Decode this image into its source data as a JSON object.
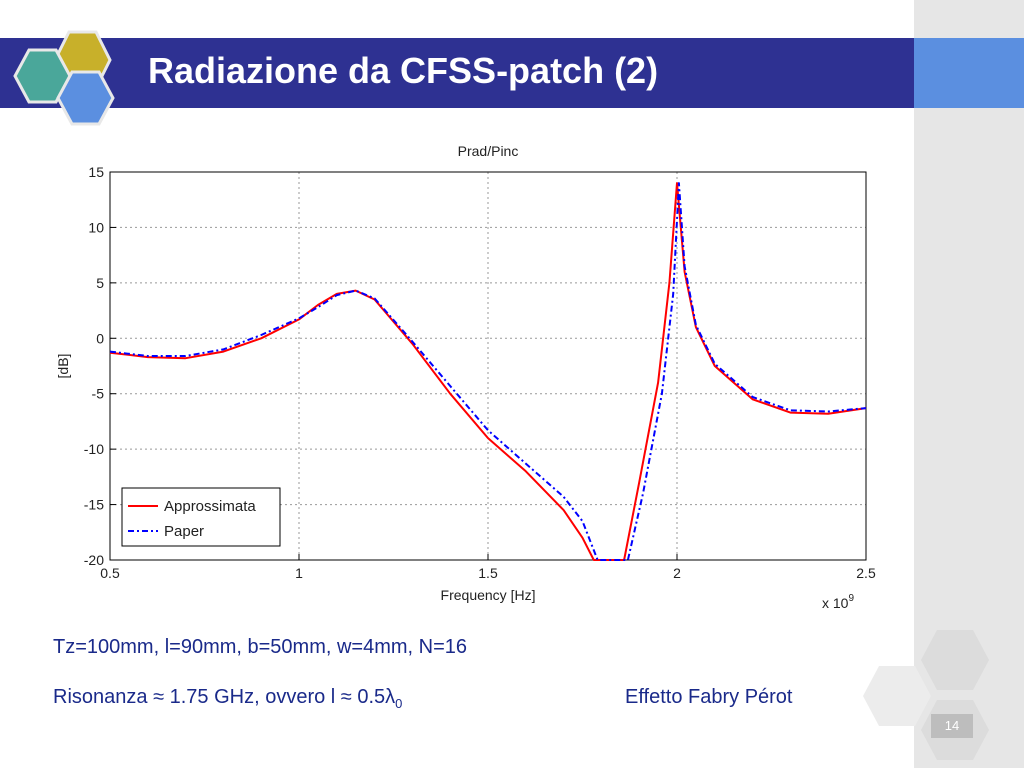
{
  "slide": {
    "title": "Radiazione da CFSS-patch (2)",
    "params_line": "Tz=100mm,  l=90mm,  b=50mm,  w=4mm,  N=16",
    "resonance_prefix": "Risonanza  ",
    "approx_symbol": "≈",
    "resonance_value": " 1.75 GHz,  ovvero l ",
    "approx_symbol_2": "≈",
    "lambda_text": " 0.5λ",
    "lambda_sub": "0",
    "fabry_perot": "Effetto Fabry Pérot",
    "page_number": "14"
  },
  "colors": {
    "title_bar": "#2e3192",
    "accent": "#5b8fe0",
    "text": "#1a2a8a",
    "series_red": "#ff0000",
    "series_blue": "#0000ff"
  },
  "chart_data": {
    "type": "line",
    "title": "Prad/Pinc",
    "xlabel": "Frequency [Hz]",
    "ylabel": "[dB]",
    "x_multiplier": "x 10",
    "x_multiplier_exp": "9",
    "xlim": [
      0.5,
      2.5
    ],
    "ylim": [
      -20,
      15
    ],
    "xticks": [
      0.5,
      1,
      1.5,
      2,
      2.5
    ],
    "xtick_labels": [
      "0.5",
      "1",
      "1.5",
      "2",
      "2.5"
    ],
    "yticks": [
      15,
      10,
      5,
      0,
      -5,
      -10,
      -15,
      -20
    ],
    "ytick_labels": [
      "15",
      "10",
      "5",
      "0",
      "-5",
      "-10",
      "-15",
      "-20"
    ],
    "grid": true,
    "legend_position": "bottom-left",
    "series": [
      {
        "name": "Approssimata",
        "color": "#ff0000",
        "style": "solid",
        "x": [
          0.5,
          0.6,
          0.7,
          0.8,
          0.9,
          1.0,
          1.05,
          1.1,
          1.15,
          1.2,
          1.3,
          1.4,
          1.5,
          1.6,
          1.7,
          1.75,
          1.78,
          1.86,
          1.9,
          1.95,
          1.98,
          2.0,
          2.02,
          2.05,
          2.1,
          2.2,
          2.3,
          2.4,
          2.5
        ],
        "y": [
          -1.3,
          -1.7,
          -1.8,
          -1.2,
          0.0,
          1.7,
          3.0,
          4.0,
          4.3,
          3.5,
          -0.5,
          -5.0,
          -9.0,
          -12.0,
          -15.5,
          -18.0,
          -20.0,
          -20.0,
          -13.0,
          -4.0,
          5.0,
          14.0,
          6.0,
          1.0,
          -2.5,
          -5.5,
          -6.7,
          -6.8,
          -6.3
        ]
      },
      {
        "name": "Paper",
        "color": "#0000ff",
        "style": "dashdot",
        "x": [
          0.5,
          0.6,
          0.7,
          0.8,
          0.9,
          1.0,
          1.05,
          1.1,
          1.15,
          1.2,
          1.3,
          1.4,
          1.5,
          1.6,
          1.7,
          1.75,
          1.79,
          1.87,
          1.91,
          1.96,
          1.99,
          2.005,
          2.02,
          2.05,
          2.1,
          2.2,
          2.3,
          2.4,
          2.5
        ],
        "y": [
          -1.2,
          -1.6,
          -1.6,
          -1.0,
          0.3,
          1.8,
          2.8,
          3.9,
          4.3,
          3.6,
          -0.3,
          -4.3,
          -8.3,
          -11.3,
          -14.3,
          -16.5,
          -20.0,
          -20.0,
          -14.0,
          -5.0,
          4.0,
          14.0,
          6.5,
          1.2,
          -2.3,
          -5.3,
          -6.5,
          -6.6,
          -6.3
        ]
      }
    ]
  }
}
